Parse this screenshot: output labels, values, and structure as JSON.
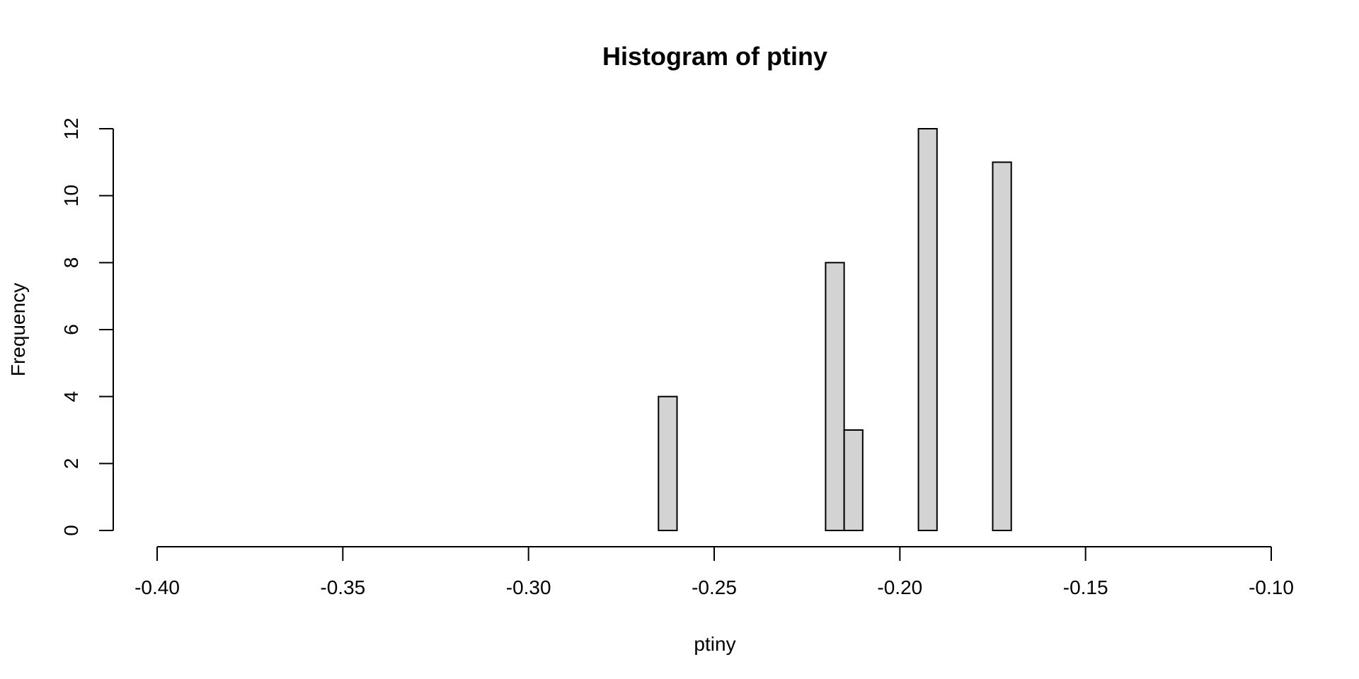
{
  "chart_data": {
    "type": "bar",
    "title": "Histogram of ptiny",
    "xlabel": "ptiny",
    "ylabel": "Frequency",
    "xlim": [
      -0.4,
      -0.1
    ],
    "ylim": [
      0,
      12
    ],
    "x_ticks": [
      -0.4,
      -0.35,
      -0.3,
      -0.25,
      -0.2,
      -0.15,
      -0.1
    ],
    "x_tick_labels": [
      "-0.40",
      "-0.35",
      "-0.30",
      "-0.25",
      "-0.20",
      "-0.15",
      "-0.10"
    ],
    "y_ticks": [
      0,
      2,
      4,
      6,
      8,
      10,
      12
    ],
    "y_tick_labels": [
      "0",
      "2",
      "4",
      "6",
      "8",
      "10",
      "12"
    ],
    "bin_width": 0.005,
    "bins": [
      {
        "start": -0.265,
        "end": -0.26,
        "count": 4
      },
      {
        "start": -0.26,
        "end": -0.255,
        "count": 0
      },
      {
        "start": -0.255,
        "end": -0.25,
        "count": 0
      },
      {
        "start": -0.25,
        "end": -0.245,
        "count": 0
      },
      {
        "start": -0.245,
        "end": -0.24,
        "count": 0
      },
      {
        "start": -0.24,
        "end": -0.235,
        "count": 0
      },
      {
        "start": -0.235,
        "end": -0.23,
        "count": 0
      },
      {
        "start": -0.23,
        "end": -0.225,
        "count": 0
      },
      {
        "start": -0.225,
        "end": -0.22,
        "count": 0
      },
      {
        "start": -0.22,
        "end": -0.215,
        "count": 8
      },
      {
        "start": -0.215,
        "end": -0.21,
        "count": 3
      },
      {
        "start": -0.21,
        "end": -0.205,
        "count": 0
      },
      {
        "start": -0.205,
        "end": -0.2,
        "count": 0
      },
      {
        "start": -0.2,
        "end": -0.195,
        "count": 0
      },
      {
        "start": -0.195,
        "end": -0.19,
        "count": 12
      },
      {
        "start": -0.19,
        "end": -0.185,
        "count": 0
      },
      {
        "start": -0.185,
        "end": -0.18,
        "count": 0
      },
      {
        "start": -0.18,
        "end": -0.175,
        "count": 0
      },
      {
        "start": -0.175,
        "end": -0.17,
        "count": 11
      }
    ],
    "bar_fill": "#d3d3d3",
    "bar_stroke": "#000000",
    "grid": false,
    "legend": "none"
  }
}
